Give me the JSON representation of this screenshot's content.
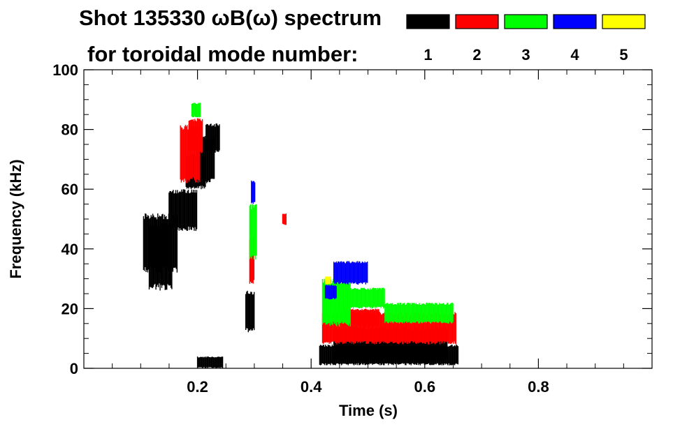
{
  "chart_data": {
    "type": "heatmap",
    "title_line1": "Shot 135330 ωB(ω) spectrum",
    "title_line2": "for toroidal mode number:",
    "xlabel": "Time (s)",
    "ylabel": "Frequency (kHz)",
    "xlim": [
      0.0,
      1.0
    ],
    "ylim": [
      0,
      100
    ],
    "x_ticks": [
      0.2,
      0.4,
      0.6,
      0.8
    ],
    "x_tick_labels": [
      "0.2",
      "0.4",
      "0.6",
      "0.8"
    ],
    "y_ticks": [
      0,
      20,
      40,
      60,
      80,
      100
    ],
    "y_tick_labels": [
      "0",
      "20",
      "40",
      "60",
      "80",
      "100"
    ],
    "grid": false,
    "legend_position": "top-right",
    "series": [
      {
        "name": "1",
        "color": "#000000",
        "regions": [
          {
            "t": [
              0.105,
              0.165
            ],
            "f": [
              32,
              52
            ]
          },
          {
            "t": [
              0.115,
              0.155
            ],
            "f": [
              26,
              50
            ]
          },
          {
            "t": [
              0.15,
              0.2
            ],
            "f": [
              46,
              60
            ]
          },
          {
            "t": [
              0.18,
              0.215
            ],
            "f": [
              60,
              72
            ]
          },
          {
            "t": [
              0.215,
              0.24
            ],
            "f": [
              72,
              82
            ]
          },
          {
            "t": [
              0.2,
              0.23
            ],
            "f": [
              62,
              78
            ]
          },
          {
            "t": [
              0.2,
              0.245
            ],
            "f": [
              0,
              4
            ]
          },
          {
            "t": [
              0.285,
              0.3
            ],
            "f": [
              12,
              26
            ]
          },
          {
            "t": [
              0.415,
              0.66
            ],
            "f": [
              1,
              8
            ]
          },
          {
            "t": [
              0.44,
              0.64
            ],
            "f": [
              2,
              14
            ]
          },
          {
            "t": [
              0.45,
              0.6
            ],
            "f": [
              4,
              13
            ]
          }
        ]
      },
      {
        "name": "2",
        "color": "#ff0000",
        "regions": [
          {
            "t": [
              0.17,
              0.205
            ],
            "f": [
              62,
              82
            ]
          },
          {
            "t": [
              0.185,
              0.21
            ],
            "f": [
              72,
              84
            ]
          },
          {
            "t": [
              0.292,
              0.3
            ],
            "f": [
              28,
              44
            ]
          },
          {
            "t": [
              0.35,
              0.356
            ],
            "f": [
              48,
              52
            ]
          },
          {
            "t": [
              0.42,
              0.655
            ],
            "f": [
              8,
              19
            ]
          },
          {
            "t": [
              0.46,
              0.52
            ],
            "f": [
              14,
              20
            ]
          }
        ]
      },
      {
        "name": "3",
        "color": "#00ff00",
        "regions": [
          {
            "t": [
              0.19,
              0.205
            ],
            "f": [
              84,
              89
            ]
          },
          {
            "t": [
              0.292,
              0.305
            ],
            "f": [
              36,
              55
            ]
          },
          {
            "t": [
              0.42,
              0.47
            ],
            "f": [
              14,
              30
            ]
          },
          {
            "t": [
              0.47,
              0.53
            ],
            "f": [
              20,
              27
            ]
          },
          {
            "t": [
              0.53,
              0.65
            ],
            "f": [
              15,
              22
            ]
          }
        ]
      },
      {
        "name": "4",
        "color": "#0000ff",
        "regions": [
          {
            "t": [
              0.295,
              0.302
            ],
            "f": [
              55,
              63
            ]
          },
          {
            "t": [
              0.425,
              0.445
            ],
            "f": [
              23,
              28
            ]
          },
          {
            "t": [
              0.44,
              0.5
            ],
            "f": [
              28,
              36
            ]
          }
        ]
      },
      {
        "name": "5",
        "color": "#ffff00",
        "regions": [
          {
            "t": [
              0.425,
              0.435
            ],
            "f": [
              28,
              31
            ]
          }
        ]
      }
    ]
  }
}
